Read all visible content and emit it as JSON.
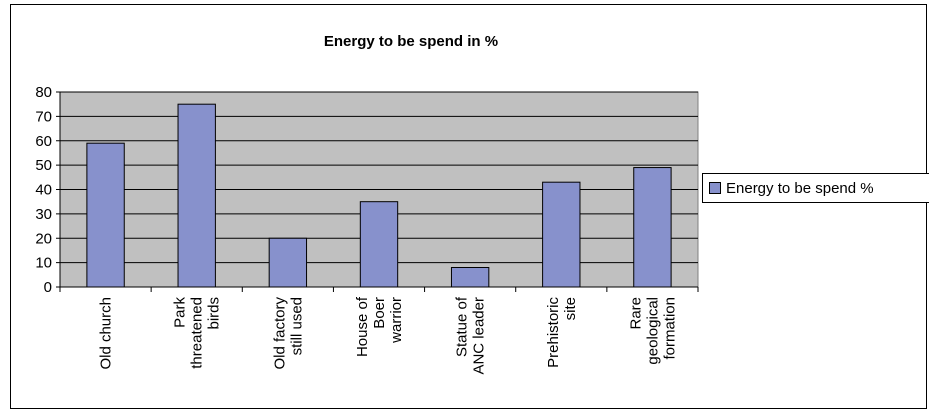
{
  "chart_data": {
    "type": "bar",
    "title": "Energy to be spend  in %",
    "categories": [
      [
        "Old church"
      ],
      [
        "Park",
        "threatened",
        "birds"
      ],
      [
        "Old factory",
        "still used"
      ],
      [
        "House of",
        "Boer",
        "warrior"
      ],
      [
        "Statue of",
        "ANC leader"
      ],
      [
        "Prehistoric",
        "site"
      ],
      [
        "Rare",
        "geological",
        "formation"
      ]
    ],
    "series": [
      {
        "name": "Energy to be spend %",
        "values": [
          59,
          75,
          20,
          35,
          8,
          43,
          49
        ]
      }
    ],
    "ylim": [
      0,
      80
    ],
    "yticks": [
      0,
      10,
      20,
      30,
      40,
      50,
      60,
      70,
      80
    ],
    "grid": true,
    "legend_position": "right",
    "colors": {
      "bar": "#8791cc",
      "plot_bg": "#c0c0c0",
      "gridline": "#000000"
    }
  }
}
